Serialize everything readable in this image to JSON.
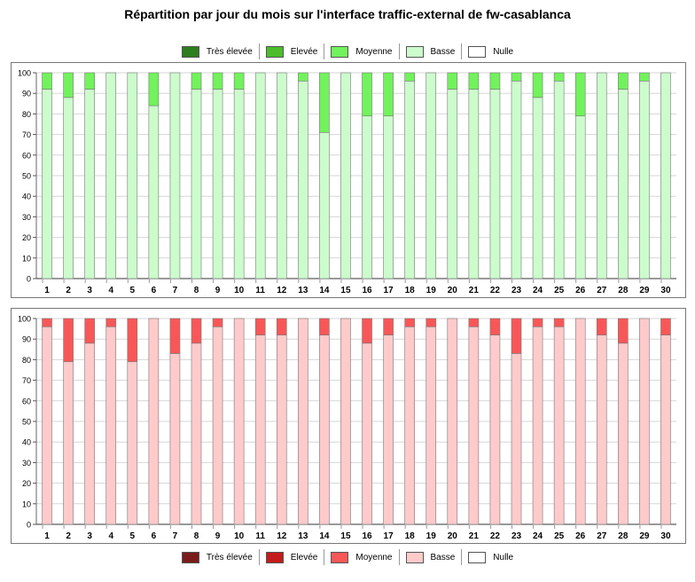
{
  "title": "Répartition par jour du mois sur l'interface traffic-external de fw-casablanca",
  "legend_top": [
    {
      "label": "Très élevée",
      "color": "#2e7d1e"
    },
    {
      "label": "Elevée",
      "color": "#4cbc2c"
    },
    {
      "label": "Moyenne",
      "color": "#72f25c"
    },
    {
      "label": "Basse",
      "color": "#ccfccc"
    },
    {
      "label": "Nulle",
      "color": "#ffffff"
    }
  ],
  "legend_bottom": [
    {
      "label": "Très élevée",
      "color": "#7a1c1c"
    },
    {
      "label": "Elevée",
      "color": "#c41c1c"
    },
    {
      "label": "Moyenne",
      "color": "#f95757"
    },
    {
      "label": "Basse",
      "color": "#ffcaca"
    },
    {
      "label": "Nulle",
      "color": "#ffffff"
    }
  ],
  "chart_data": [
    {
      "type": "bar",
      "stacked": true,
      "ylim": [
        0,
        100
      ],
      "yticks": [
        0,
        10,
        20,
        30,
        40,
        50,
        60,
        70,
        80,
        90,
        100
      ],
      "grid": true,
      "categories": [
        "1",
        "2",
        "3",
        "4",
        "5",
        "6",
        "7",
        "8",
        "9",
        "10",
        "11",
        "12",
        "13",
        "14",
        "15",
        "16",
        "17",
        "18",
        "19",
        "20",
        "21",
        "22",
        "23",
        "24",
        "25",
        "26",
        "27",
        "28",
        "29",
        "30"
      ],
      "series": [
        {
          "name": "Basse",
          "color": "#ccfccc",
          "values": [
            92,
            88,
            92,
            100,
            100,
            84,
            100,
            92,
            92,
            92,
            100,
            100,
            96,
            71,
            100,
            79,
            79,
            96,
            100,
            92,
            92,
            92,
            96,
            88,
            96,
            79,
            100,
            92,
            96,
            100
          ]
        },
        {
          "name": "Moyenne",
          "color": "#72f25c",
          "values": [
            8,
            12,
            8,
            0,
            0,
            16,
            0,
            8,
            8,
            8,
            0,
            0,
            4,
            29,
            0,
            21,
            21,
            4,
            0,
            8,
            8,
            8,
            4,
            12,
            4,
            21,
            0,
            8,
            4,
            0
          ]
        }
      ]
    },
    {
      "type": "bar",
      "stacked": true,
      "ylim": [
        0,
        100
      ],
      "yticks": [
        0,
        10,
        20,
        30,
        40,
        50,
        60,
        70,
        80,
        90,
        100
      ],
      "grid": true,
      "categories": [
        "1",
        "2",
        "3",
        "4",
        "5",
        "6",
        "7",
        "8",
        "9",
        "10",
        "11",
        "12",
        "13",
        "14",
        "15",
        "16",
        "17",
        "18",
        "19",
        "20",
        "21",
        "22",
        "23",
        "24",
        "25",
        "26",
        "27",
        "28",
        "29",
        "30"
      ],
      "series": [
        {
          "name": "Basse",
          "color": "#ffcaca",
          "values": [
            96,
            79,
            88,
            96,
            79,
            100,
            83,
            88,
            96,
            100,
            92,
            92,
            100,
            92,
            100,
            88,
            92,
            96,
            96,
            100,
            96,
            92,
            83,
            96,
            96,
            100,
            92,
            88,
            100,
            92
          ]
        },
        {
          "name": "Moyenne",
          "color": "#f95757",
          "values": [
            4,
            21,
            12,
            4,
            21,
            0,
            17,
            12,
            4,
            0,
            8,
            8,
            0,
            8,
            0,
            12,
            8,
            4,
            4,
            0,
            4,
            8,
            17,
            4,
            4,
            0,
            8,
            12,
            0,
            8
          ]
        }
      ]
    }
  ]
}
